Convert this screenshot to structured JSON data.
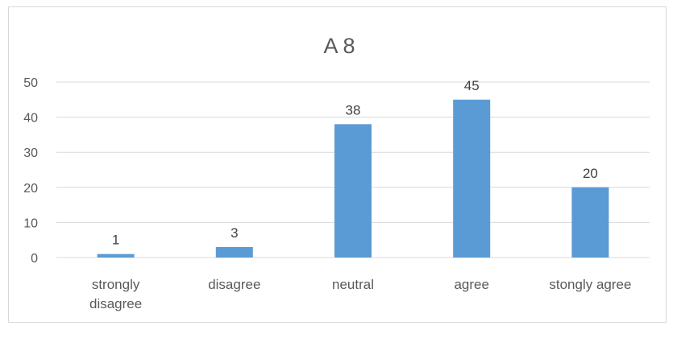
{
  "chart_data": {
    "type": "bar",
    "title": "A 8",
    "categories": [
      [
        "strongly",
        "disagree"
      ],
      [
        "disagree"
      ],
      [
        "neutral"
      ],
      [
        "agree"
      ],
      [
        "stongly agree"
      ]
    ],
    "values": [
      1,
      3,
      38,
      45,
      20
    ],
    "ylim": [
      0,
      50
    ],
    "yticks": [
      0,
      10,
      20,
      30,
      40,
      50
    ],
    "xlabel": "",
    "ylabel": "",
    "grid": true,
    "legend": "none",
    "bar_color": "#5b9bd5",
    "grid_color": "#d9d9d9",
    "data_labels": true
  }
}
